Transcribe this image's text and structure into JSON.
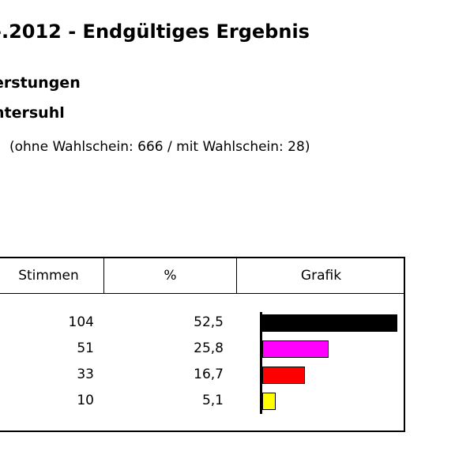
{
  "header": {
    "title": "-.2012 - Endgültiges Ergebnis",
    "subtitle1": "erstungen",
    "subtitle2": "ntersuhl",
    "turnout_note": "(ohne Wahlschein: 666 / mit Wahlschein: 28)"
  },
  "table": {
    "col_votes": "Stimmen",
    "col_percent": "%",
    "col_graphic": "Grafik",
    "rows": [
      {
        "votes": "104",
        "percent": "52,5",
        "share": 52.5,
        "color": "#000000"
      },
      {
        "votes": "51",
        "percent": "25,8",
        "share": 25.8,
        "color": "#ff00ff"
      },
      {
        "votes": "33",
        "percent": "16,7",
        "share": 16.7,
        "color": "#ff0000"
      },
      {
        "votes": "10",
        "percent": "5,1",
        "share": 5.1,
        "color": "#ffff00"
      }
    ]
  }
}
